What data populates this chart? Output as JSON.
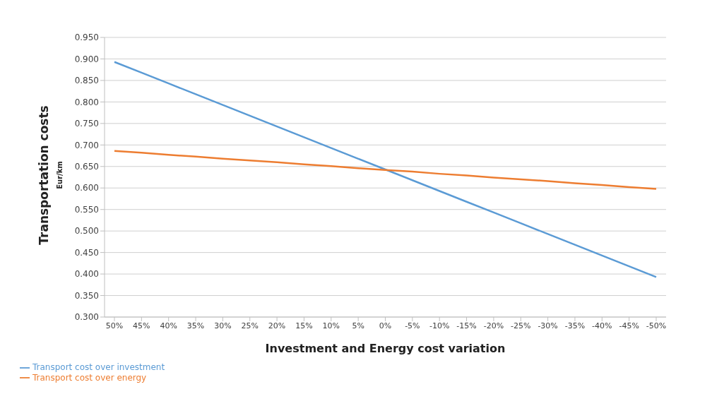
{
  "chart_data": {
    "type": "line",
    "xlabel": "Investment and Energy cost variation",
    "ylabel": "Transportation costs\nEur/km",
    "categories": [
      "50%",
      "45%",
      "40%",
      "35%",
      "30%",
      "25%",
      "20%",
      "15%",
      "10%",
      "5%",
      "0%",
      "-5%",
      "-10%",
      "-15%",
      "-20%",
      "-25%",
      "-30%",
      "-35%",
      "-40%",
      "-45%",
      "-50%"
    ],
    "series": [
      {
        "name": "Transport cost over investment",
        "color": "#5b9bd5",
        "values": [
          0.893,
          0.868,
          0.843,
          0.818,
          0.793,
          0.768,
          0.743,
          0.718,
          0.693,
          0.668,
          0.643,
          0.618,
          0.593,
          0.568,
          0.543,
          0.518,
          0.493,
          0.468,
          0.443,
          0.418,
          0.393
        ]
      },
      {
        "name": "Transport cost over energy",
        "color": "#ed7d31",
        "values": [
          0.686,
          0.682,
          0.677,
          0.673,
          0.668,
          0.664,
          0.66,
          0.655,
          0.651,
          0.646,
          0.642,
          0.638,
          0.633,
          0.629,
          0.624,
          0.62,
          0.616,
          0.611,
          0.607,
          0.602,
          0.598
        ]
      }
    ],
    "ylim": [
      0.3,
      0.95
    ],
    "yticks": [
      {
        "value": 0.3,
        "label": "0.300"
      },
      {
        "value": 0.35,
        "label": "0.350"
      },
      {
        "value": 0.4,
        "label": "0.400"
      },
      {
        "value": 0.45,
        "label": "0.450"
      },
      {
        "value": 0.5,
        "label": "0.500"
      },
      {
        "value": 0.55,
        "label": "0.550"
      },
      {
        "value": 0.6,
        "label": "0.600"
      },
      {
        "value": 0.65,
        "label": "0.650"
      },
      {
        "value": 0.7,
        "label": "0.700"
      },
      {
        "value": 0.75,
        "label": "0.750"
      },
      {
        "value": 0.8,
        "label": "0.800"
      },
      {
        "value": 0.85,
        "label": "0.850"
      },
      {
        "value": 0.9,
        "label": "0.900"
      },
      {
        "value": 0.95,
        "label": "0.950"
      }
    ],
    "grid": "y",
    "legend": "bottom left",
    "marker": "none",
    "line_style": "solid"
  }
}
